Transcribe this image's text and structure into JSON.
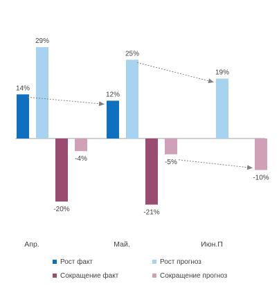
{
  "chart_data": {
    "type": "bar",
    "categories": [
      "Апр.",
      "Май.",
      "Июн.П"
    ],
    "series": [
      {
        "name": "Рост факт",
        "color": "#1070c0",
        "values": [
          14,
          12,
          null
        ]
      },
      {
        "name": "Рост прогноз",
        "color": "#a8d3f0",
        "values": [
          29,
          25,
          19
        ]
      },
      {
        "name": "Сокращение факт",
        "color": "#9a4c70",
        "values": [
          -20,
          -21,
          null
        ]
      },
      {
        "name": "Сокращение прогноз",
        "color": "#cfa0b8",
        "values": [
          -4,
          -5,
          -10
        ]
      }
    ],
    "data_label_suffix": "%",
    "annotations": [
      {
        "type": "dotted-arrow",
        "from": {
          "category": "Апр.",
          "series": "Рост факт"
        },
        "to": {
          "category": "Май.",
          "series": "Рост факт"
        }
      },
      {
        "type": "dotted-arrow",
        "from": {
          "category": "Май.",
          "series": "Рост прогноз"
        },
        "to": {
          "category": "Июн.П",
          "series": "Рост прогноз"
        }
      },
      {
        "type": "dotted-arrow",
        "from": {
          "category": "Май.",
          "series": "Сокращение прогноз"
        },
        "to": {
          "category": "Июн.П",
          "series": "Сокращение прогноз"
        }
      }
    ],
    "axis_color": "#a0a0a0",
    "arrow_color": "#808080",
    "legend_position": "bottom",
    "grid": false
  }
}
